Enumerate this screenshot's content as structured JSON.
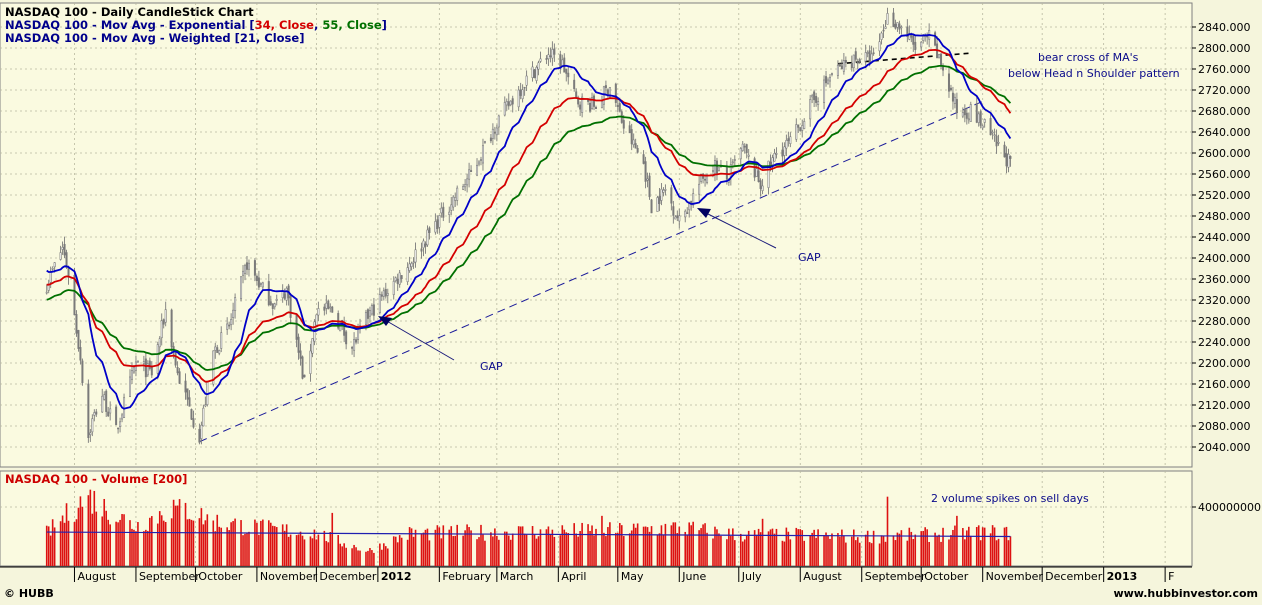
{
  "price_panel": {
    "title": "NASDAQ 100 - Daily CandleStick Chart",
    "legend_ema_prefix": "NASDAQ 100 - Mov Avg - Exponential [",
    "legend_ema_p1": "34, Close",
    "legend_ema_sep": ", ",
    "legend_ema_p2": "55, Close",
    "legend_ema_suffix": "]",
    "legend_wma": "NASDAQ 100 - Mov Avg - Weighted [21, Close]"
  },
  "volume_panel": {
    "title": "NASDAQ 100 - Volume [200]"
  },
  "annotations": {
    "bear_cross_line1": "bear cross of MA's",
    "bear_cross_line2": "below Head n Shoulder pattern",
    "gap_label_1": "GAP",
    "gap_label_2": "GAP",
    "volume_note": "2 volume spikes on sell days"
  },
  "footer": {
    "left": "© HUBB",
    "right": "www.hubbinvestor.com"
  },
  "colors": {
    "candle": "#7a7a7a",
    "ema34": "#d40000",
    "ema55": "#007000",
    "wma21": "#0000c8",
    "volume_bar": "#dd1111",
    "volume_ma": "#2020b0",
    "trendline": "#1a1a9a",
    "background": "#fafae0"
  },
  "chart_data": [
    {
      "type": "candlestick",
      "title": "NASDAQ 100 - Daily CandleStick Chart",
      "ylim": [
        2000,
        2870
      ],
      "y_ticks": [
        "2040.000",
        "2080.000",
        "2120.000",
        "2160.000",
        "2200.000",
        "2240.000",
        "2280.000",
        "2320.000",
        "2360.000",
        "2400.000",
        "2440.000",
        "2480.000",
        "2520.000",
        "2560.000",
        "2600.000",
        "2640.000",
        "2680.000",
        "2720.000",
        "2760.000",
        "2800.000",
        "2840.000"
      ],
      "x_months": [
        "August",
        "September",
        "October",
        "November",
        "December",
        "2012",
        "February",
        "March",
        "April",
        "May",
        "June",
        "July",
        "August",
        "September",
        "October",
        "November",
        "December",
        "2013",
        "F"
      ],
      "close_anchors": [
        [
          "2011-07-18",
          2350
        ],
        [
          "2011-07-26",
          2420
        ],
        [
          "2011-07-29",
          2370
        ],
        [
          "2011-08-04",
          2210
        ],
        [
          "2011-08-08",
          2060
        ],
        [
          "2011-08-10",
          2090
        ],
        [
          "2011-08-15",
          2140
        ],
        [
          "2011-08-22",
          2070
        ],
        [
          "2011-09-01",
          2200
        ],
        [
          "2011-09-09",
          2180
        ],
        [
          "2011-09-16",
          2300
        ],
        [
          "2011-09-22",
          2180
        ],
        [
          "2011-10-03",
          2060
        ],
        [
          "2011-10-10",
          2220
        ],
        [
          "2011-10-18",
          2270
        ],
        [
          "2011-10-27",
          2390
        ],
        [
          "2011-11-04",
          2340
        ],
        [
          "2011-11-10",
          2310
        ],
        [
          "2011-11-16",
          2340
        ],
        [
          "2011-11-25",
          2160
        ],
        [
          "2011-12-01",
          2300
        ],
        [
          "2011-12-09",
          2300
        ],
        [
          "2011-12-19",
          2230
        ],
        [
          "2011-12-27",
          2290
        ],
        [
          "2012-01-06",
          2340
        ],
        [
          "2012-01-17",
          2390
        ],
        [
          "2012-01-31",
          2470
        ],
        [
          "2012-02-17",
          2560
        ],
        [
          "2012-03-01",
          2660
        ],
        [
          "2012-03-16",
          2740
        ],
        [
          "2012-03-27",
          2790
        ],
        [
          "2012-04-03",
          2770
        ],
        [
          "2012-04-10",
          2700
        ],
        [
          "2012-04-20",
          2690
        ],
        [
          "2012-04-27",
          2730
        ],
        [
          "2012-05-04",
          2650
        ],
        [
          "2012-05-14",
          2580
        ],
        [
          "2012-05-18",
          2500
        ],
        [
          "2012-05-25",
          2530
        ],
        [
          "2012-06-01",
          2470
        ],
        [
          "2012-06-11",
          2540
        ],
        [
          "2012-06-18",
          2580
        ],
        [
          "2012-06-25",
          2550
        ],
        [
          "2012-07-03",
          2610
        ],
        [
          "2012-07-12",
          2540
        ],
        [
          "2012-07-20",
          2600
        ],
        [
          "2012-07-27",
          2620
        ],
        [
          "2012-08-06",
          2690
        ],
        [
          "2012-08-17",
          2750
        ],
        [
          "2012-08-28",
          2780
        ],
        [
          "2012-09-07",
          2780
        ],
        [
          "2012-09-14",
          2860
        ],
        [
          "2012-09-21",
          2840
        ],
        [
          "2012-09-28",
          2800
        ],
        [
          "2012-10-05",
          2820
        ],
        [
          "2012-10-12",
          2760
        ],
        [
          "2012-10-19",
          2680
        ],
        [
          "2012-10-26",
          2680
        ],
        [
          "2012-11-02",
          2650
        ],
        [
          "2012-11-09",
          2610
        ],
        [
          "2012-11-15",
          2580
        ]
      ],
      "ema_prefix_values": {
        "wma21": 2380,
        "ema34": 2350,
        "ema55": 2320
      },
      "trendline": [
        [
          "2011-10-03",
          2050
        ],
        [
          "2012-11-02",
          2700
        ]
      ],
      "head_shoulder_neckline": [
        [
          "2012-08-20",
          2770
        ],
        [
          "2012-10-25",
          2790
        ]
      ]
    },
    {
      "type": "bar",
      "title": "NASDAQ 100 - Volume [200]",
      "ylim": [
        0,
        600000000
      ],
      "y_ticks": [
        "400000000"
      ],
      "volume_anchors": [
        [
          "2011-07-18",
          220000000
        ],
        [
          "2011-08-08",
          480000000
        ],
        [
          "2011-08-15",
          400000000
        ],
        [
          "2011-09-01",
          270000000
        ],
        [
          "2011-09-22",
          410000000
        ],
        [
          "2011-10-10",
          300000000
        ],
        [
          "2011-11-01",
          260000000
        ],
        [
          "2011-12-01",
          220000000
        ],
        [
          "2011-12-27",
          100000000
        ],
        [
          "2012-01-17",
          220000000
        ],
        [
          "2012-03-01",
          230000000
        ],
        [
          "2012-05-01",
          240000000
        ],
        [
          "2012-06-01",
          260000000
        ],
        [
          "2012-07-01",
          210000000
        ],
        [
          "2012-08-01",
          210000000
        ],
        [
          "2012-09-01",
          200000000
        ],
        [
          "2012-10-01",
          210000000
        ],
        [
          "2012-11-01",
          230000000
        ],
        [
          "2012-11-15",
          220000000
        ]
      ],
      "volume_spikes": [
        [
          "2011-08-08",
          480000000
        ],
        [
          "2011-09-22",
          410000000
        ],
        [
          "2011-12-09",
          360000000
        ],
        [
          "2012-04-23",
          340000000
        ],
        [
          "2012-07-13",
          320000000
        ],
        [
          "2012-09-14",
          470000000
        ],
        [
          "2012-10-19",
          340000000
        ]
      ],
      "volume_ma_start": 230000000,
      "volume_ma_end": 200000000
    }
  ]
}
